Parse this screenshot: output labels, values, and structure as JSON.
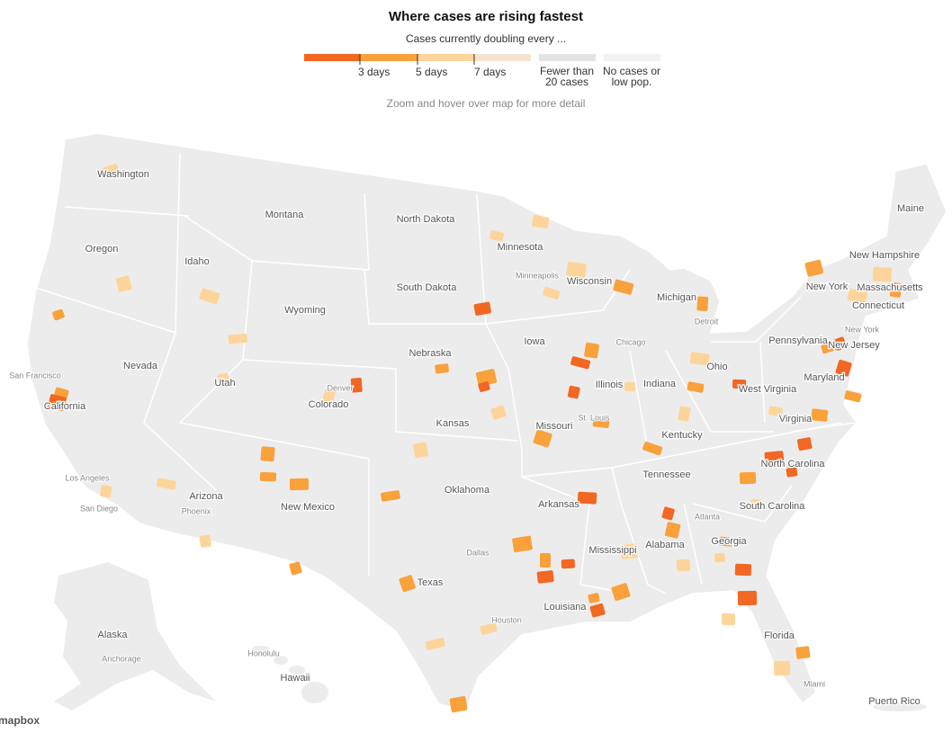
{
  "header": {
    "title": "Where cases are rising fastest",
    "subtitle": "Cases currently doubling every ..."
  },
  "legend": {
    "ticks": [
      "3 days",
      "5 days",
      "7 days"
    ],
    "extra": [
      "Fewer than 20 cases",
      "No cases or low pop."
    ]
  },
  "note": "Zoom and hover over map for more detail",
  "map": {
    "states": [
      "Washington",
      "Montana",
      "North Dakota",
      "Minnesota",
      "Maine",
      "Oregon",
      "Idaho",
      "South Dakota",
      "Wisconsin",
      "Michigan",
      "New Hampshire",
      "New York",
      "Massachusetts",
      "Connecticut",
      "Wyoming",
      "Nebraska",
      "Iowa",
      "Pennsylvania",
      "New Jersey",
      "Ohio",
      "Nevada",
      "Utah",
      "Illinois",
      "Indiana",
      "West Virginia",
      "Maryland",
      "California",
      "Colorado",
      "Kansas",
      "Missouri",
      "Virginia",
      "Kentucky",
      "North Carolina",
      "Tennessee",
      "Oklahoma",
      "Arizona",
      "New Mexico",
      "Arkansas",
      "South Carolina",
      "Mississippi",
      "Alabama",
      "Georgia",
      "Texas",
      "Louisiana",
      "Florida",
      "Alaska",
      "Hawaii",
      "Puerto Rico"
    ],
    "cities": [
      "San Francisco",
      "Minneapolis",
      "Detroit",
      "Chicago",
      "New York",
      "Denver",
      "St. Louis",
      "Los Angeles",
      "San Diego",
      "Phoenix",
      "Atlanta",
      "Dallas",
      "Houston",
      "Anchorage",
      "Honolulu",
      "Miami"
    ]
  },
  "attribution": "mapbox"
}
